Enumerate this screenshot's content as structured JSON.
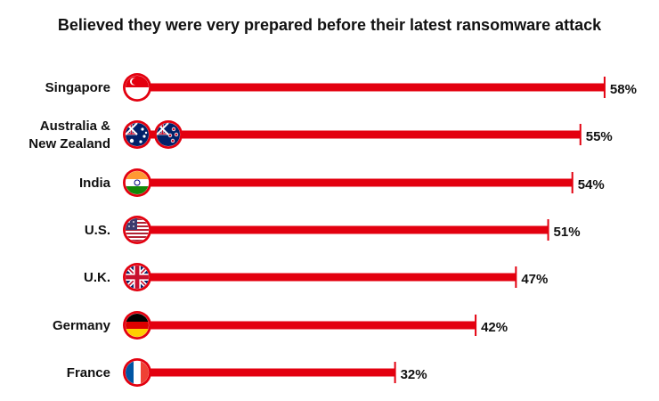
{
  "chart_data": {
    "type": "bar",
    "orientation": "horizontal",
    "title": "Believed they were very prepared before their latest ransomware attack",
    "categories": [
      [
        "Singapore"
      ],
      [
        "Australia &",
        "New Zealand"
      ],
      [
        "India"
      ],
      [
        "U.S."
      ],
      [
        "U.K."
      ],
      [
        "Germany"
      ],
      [
        "France"
      ]
    ],
    "values": [
      58,
      55,
      54,
      51,
      47,
      42,
      32
    ],
    "value_labels": [
      "58%",
      "55%",
      "54%",
      "51%",
      "47%",
      "42%",
      "32%"
    ],
    "flags": [
      [
        "singapore-flag-icon"
      ],
      [
        "australia-flag-icon",
        "new-zealand-flag-icon"
      ],
      [
        "india-flag-icon"
      ],
      [
        "us-flag-icon"
      ],
      [
        "uk-flag-icon"
      ],
      [
        "germany-flag-icon"
      ],
      [
        "france-flag-icon"
      ]
    ],
    "xlim": [
      0,
      100
    ],
    "grid": false,
    "colors": {
      "bar": "#e3000f",
      "text": "#111111"
    }
  }
}
